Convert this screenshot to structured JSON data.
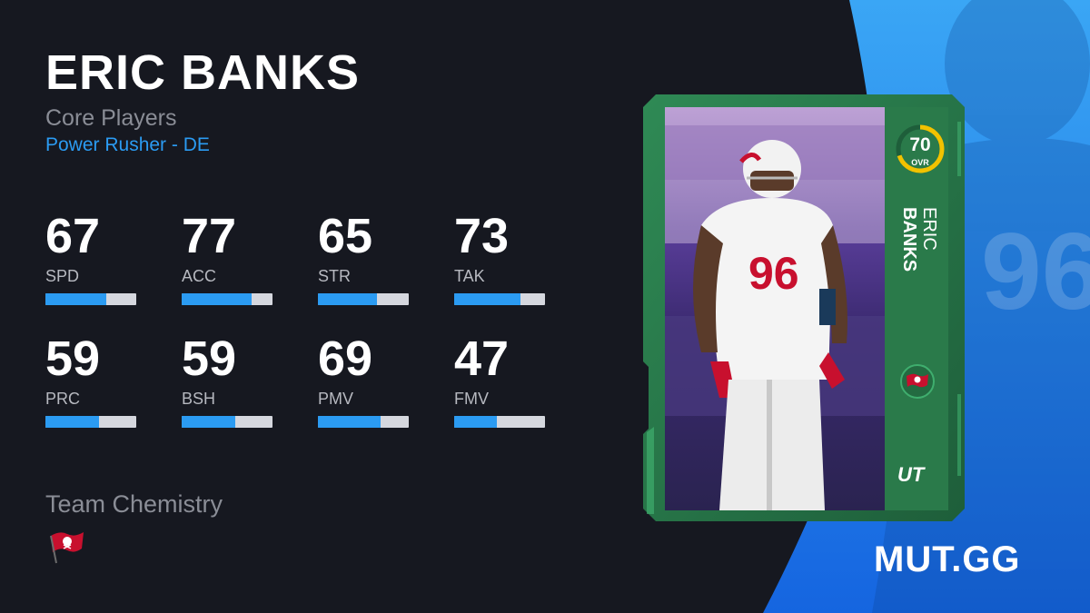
{
  "player": {
    "name": "ERIC BANKS",
    "program": "Core Players",
    "archetype": "Power Rusher - DE",
    "first_name": "ERIC",
    "last_name": "BANKS",
    "overall": "70",
    "overall_label": "OVR",
    "overall_fraction": 0.7,
    "card_badge": "UT",
    "jersey_number": "96"
  },
  "stats": [
    {
      "value": "67",
      "label": "SPD",
      "fraction": 0.67
    },
    {
      "value": "77",
      "label": "ACC",
      "fraction": 0.77
    },
    {
      "value": "65",
      "label": "STR",
      "fraction": 0.65
    },
    {
      "value": "73",
      "label": "TAK",
      "fraction": 0.73
    },
    {
      "value": "59",
      "label": "PRC",
      "fraction": 0.59
    },
    {
      "value": "59",
      "label": "BSH",
      "fraction": 0.59
    },
    {
      "value": "69",
      "label": "PMV",
      "fraction": 0.69
    },
    {
      "value": "47",
      "label": "FMV",
      "fraction": 0.47
    }
  ],
  "chemistry": {
    "title": "Team Chemistry",
    "team_icon": "buccaneers-flag-icon"
  },
  "brand": "MUT.GG",
  "colors": {
    "background": "#161820",
    "accent_blue": "#2b9bf2",
    "card_green": "#2a7a4a",
    "ovr_ring": "#f2c200"
  }
}
